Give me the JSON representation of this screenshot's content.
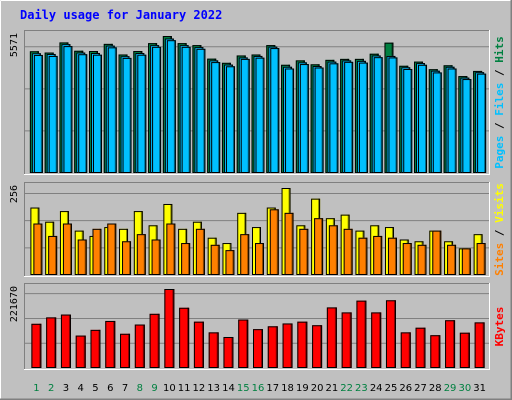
{
  "chart_data": [
    {
      "type": "bar",
      "title": "Daily usage for January 2022",
      "categories": [
        "1",
        "2",
        "3",
        "4",
        "5",
        "6",
        "7",
        "8",
        "9",
        "10",
        "11",
        "12",
        "13",
        "14",
        "15",
        "16",
        "17",
        "18",
        "19",
        "20",
        "21",
        "22",
        "23",
        "24",
        "25",
        "26",
        "27",
        "28",
        "29",
        "30",
        "31"
      ],
      "weekend_days": [
        "1",
        "2",
        "8",
        "9",
        "15",
        "16",
        "22",
        "23",
        "29",
        "30"
      ],
      "ymax_label": "5571",
      "series": [
        {
          "name": "Hits",
          "color": "#008040",
          "values": [
            4950,
            4900,
            5310,
            4970,
            4960,
            5250,
            4820,
            4960,
            5280,
            5571,
            5280,
            5200,
            4650,
            4480,
            4780,
            4820,
            5200,
            4400,
            4580,
            4420,
            4600,
            4640,
            4640,
            4850,
            5300,
            4360,
            4530,
            4220,
            4380,
            3940,
            4150
          ]
        },
        {
          "name": "Files",
          "color": "#00c0ff",
          "values": [
            4870,
            4840,
            5240,
            4900,
            4880,
            5180,
            4750,
            4880,
            5200,
            5470,
            5200,
            5120,
            4580,
            4410,
            4700,
            4760,
            5140,
            4320,
            4500,
            4350,
            4530,
            4580,
            4560,
            4780,
            4760,
            4300,
            4470,
            4160,
            4320,
            3880,
            4100
          ]
        },
        {
          "name": "Pages",
          "color": "#00c0ff",
          "values": [
            4800,
            4760,
            5160,
            4830,
            4810,
            5110,
            4680,
            4810,
            5130,
            5400,
            5130,
            5050,
            4510,
            4340,
            4640,
            4690,
            5080,
            4250,
            4430,
            4290,
            4460,
            4520,
            4490,
            4710,
            4700,
            4230,
            4400,
            4090,
            4250,
            3820,
            4040
          ]
        }
      ]
    },
    {
      "type": "bar",
      "ymax_label": "256",
      "series": [
        {
          "name": "Visits",
          "color": "#ffff00",
          "values": [
            190,
            150,
            180,
            125,
            110,
            135,
            130,
            180,
            140,
            200,
            130,
            150,
            105,
            90,
            175,
            135,
            190,
            245,
            140,
            215,
            160,
            170,
            125,
            140,
            135,
            100,
            95,
            125,
            95,
            75,
            115
          ]
        },
        {
          "name": "Sites",
          "color": "#ff8000",
          "values": [
            145,
            110,
            145,
            100,
            130,
            145,
            95,
            115,
            100,
            145,
            90,
            130,
            85,
            70,
            115,
            90,
            185,
            175,
            130,
            160,
            140,
            130,
            105,
            110,
            105,
            90,
            85,
            125,
            85,
            75,
            90
          ]
        }
      ],
      "side_label_parts": [
        "Sites",
        " / ",
        "Visits"
      ]
    },
    {
      "type": "bar",
      "ymax_label": "221670",
      "series": [
        {
          "name": "KBytes",
          "color": "#ff0000",
          "values": [
            124000,
            142000,
            150000,
            91000,
            107000,
            132000,
            96000,
            122000,
            152000,
            221670,
            169000,
            130000,
            100000,
            87000,
            136000,
            109000,
            117000,
            125000,
            130000,
            120000,
            170000,
            156000,
            189000,
            156000,
            190000,
            100000,
            113000,
            92000,
            134000,
            99000,
            128000
          ]
        }
      ]
    }
  ]
}
